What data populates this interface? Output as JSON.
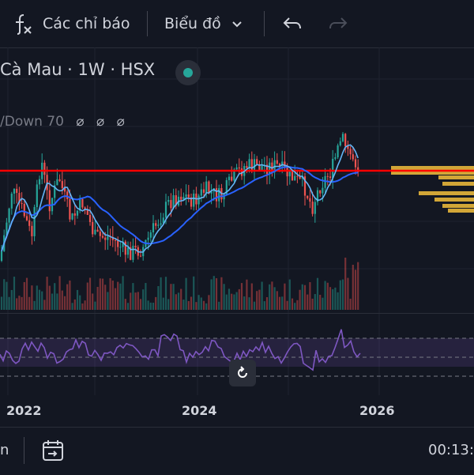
{
  "toolbar": {
    "indicators_label": "Các chỉ báo",
    "chart_type_label": "Biểu đồ",
    "fx_icon": "fx-icon",
    "undo_icon": "undo-icon",
    "redo_icon": "redo-icon"
  },
  "legend": {
    "symbol_title": "Cà Mau · 1W · HSX",
    "indicator_text": "/Down 70",
    "status_color": "#26a69a"
  },
  "timeline": {
    "years": [
      "2022",
      "2024",
      "2026"
    ]
  },
  "bottom": {
    "left_text": "n",
    "time_text": "00:13:"
  },
  "colors": {
    "up": "#26a69a",
    "down": "#ef5350",
    "ma_fast": "#64b5f6",
    "ma_slow": "#2962ff",
    "rsi": "#7e57c2",
    "volume_profile": "#f5c03b",
    "resistance": "#ff0000"
  }
}
